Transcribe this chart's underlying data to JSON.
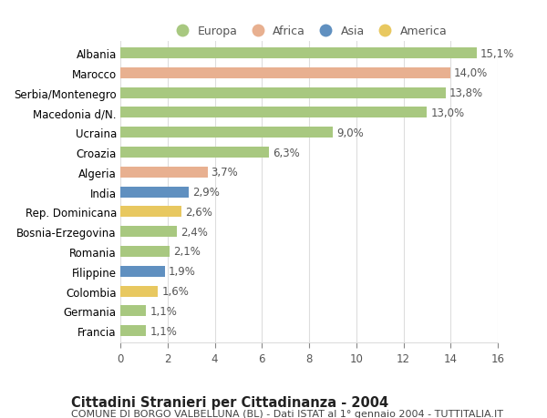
{
  "countries": [
    "Albania",
    "Marocco",
    "Serbia/Montenegro",
    "Macedonia d/N.",
    "Ucraina",
    "Croazia",
    "Algeria",
    "India",
    "Rep. Dominicana",
    "Bosnia-Erzegovina",
    "Romania",
    "Filippine",
    "Colombia",
    "Germania",
    "Francia"
  ],
  "values": [
    15.1,
    14.0,
    13.8,
    13.0,
    9.0,
    6.3,
    3.7,
    2.9,
    2.6,
    2.4,
    2.1,
    1.9,
    1.6,
    1.1,
    1.1
  ],
  "continents": [
    "Europa",
    "Africa",
    "Europa",
    "Europa",
    "Europa",
    "Europa",
    "Africa",
    "Asia",
    "America",
    "Europa",
    "Europa",
    "Asia",
    "America",
    "Europa",
    "Europa"
  ],
  "colors": {
    "Europa": "#a8c880",
    "Africa": "#e8b090",
    "Asia": "#6090c0",
    "America": "#e8c860"
  },
  "legend_order": [
    "Europa",
    "Africa",
    "Asia",
    "America"
  ],
  "title": "Cittadini Stranieri per Cittadinanza - 2004",
  "subtitle": "COMUNE DI BORGO VALBELLUNA (BL) - Dati ISTAT al 1° gennaio 2004 - TUTTITALIA.IT",
  "xlim": [
    0,
    16
  ],
  "xticks": [
    0,
    2,
    4,
    6,
    8,
    10,
    12,
    14,
    16
  ],
  "background_color": "#ffffff",
  "grid_color": "#dddddd",
  "bar_height": 0.55,
  "title_fontsize": 10.5,
  "subtitle_fontsize": 8,
  "tick_fontsize": 8.5,
  "legend_fontsize": 9
}
